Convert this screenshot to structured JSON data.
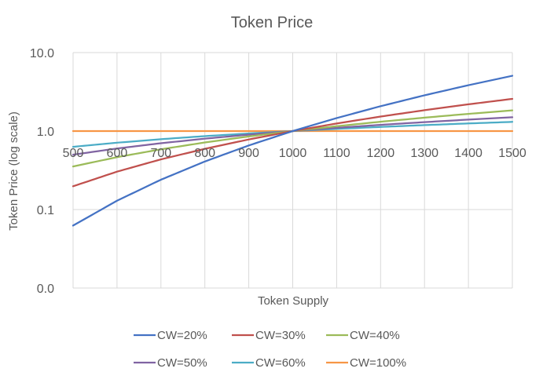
{
  "chart_data": {
    "type": "line",
    "title": "Token Price",
    "xlabel": "Token Supply",
    "ylabel": "Token Price (log scale)",
    "xlim": [
      500,
      1500
    ],
    "ylim": [
      0.01,
      10
    ],
    "y_scale": "log",
    "grid": true,
    "legend_position": "bottom",
    "x_ticks": [
      "500",
      "600",
      "700",
      "800",
      "900",
      "1000",
      "1100",
      "1200",
      "1300",
      "1400",
      "1500"
    ],
    "y_ticks": [
      {
        "value": 10,
        "label": "10.0"
      },
      {
        "value": 1,
        "label": "1.0"
      },
      {
        "value": 0.1,
        "label": "0.1"
      },
      {
        "value": 0.01,
        "label": "0.0"
      }
    ],
    "x": [
      500,
      600,
      700,
      800,
      900,
      1000,
      1100,
      1200,
      1300,
      1400,
      1500
    ],
    "series": [
      {
        "name": "CW=20%",
        "color": "#4472C4",
        "values": [
          0.0625,
          0.1296,
          0.2401,
          0.4096,
          0.6561,
          1.0,
          1.4641,
          2.0736,
          2.8561,
          3.8416,
          5.0625
        ]
      },
      {
        "name": "CW=30%",
        "color": "#C0504D",
        "values": [
          0.198,
          0.304,
          0.436,
          0.594,
          0.782,
          1.0,
          1.249,
          1.531,
          1.845,
          2.192,
          2.573
        ]
      },
      {
        "name": "CW=40%",
        "color": "#9BBB59",
        "values": [
          0.354,
          0.465,
          0.586,
          0.716,
          0.854,
          1.0,
          1.154,
          1.315,
          1.482,
          1.657,
          1.837
        ]
      },
      {
        "name": "CW=50%",
        "color": "#8064A2",
        "values": [
          0.5,
          0.6,
          0.7,
          0.8,
          0.9,
          1.0,
          1.1,
          1.2,
          1.3,
          1.4,
          1.5
        ]
      },
      {
        "name": "CW=60%",
        "color": "#4BACC6",
        "values": [
          0.63,
          0.711,
          0.788,
          0.862,
          0.932,
          1.0,
          1.066,
          1.129,
          1.191,
          1.251,
          1.31
        ]
      },
      {
        "name": "CW=100%",
        "color": "#F79646",
        "values": [
          1.0,
          1.0,
          1.0,
          1.0,
          1.0,
          1.0,
          1.0,
          1.0,
          1.0,
          1.0,
          1.0
        ]
      }
    ]
  }
}
